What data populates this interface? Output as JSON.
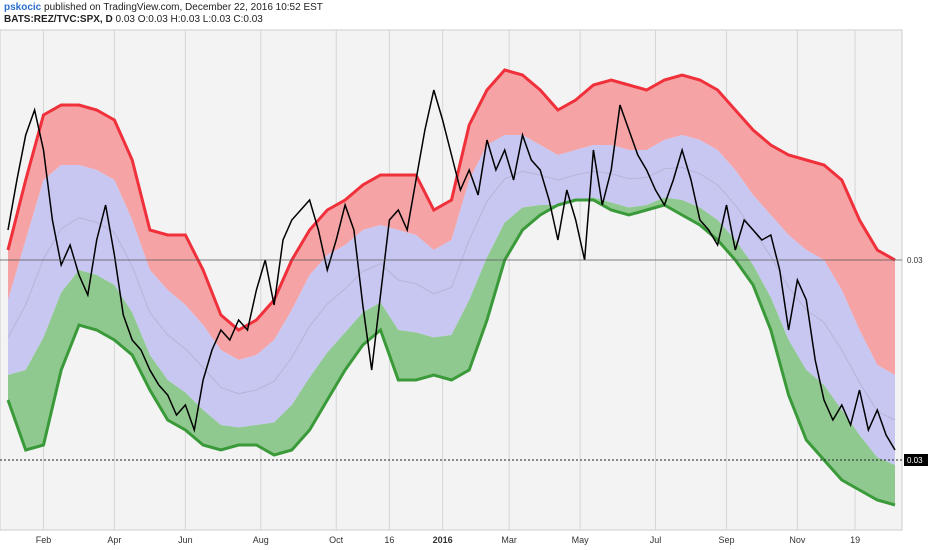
{
  "header": {
    "author": "pskocic",
    "published": "published on TradingView.com, December 22, 2016 10:52 EST",
    "symbol": "BATS:REZ/TVC:SPX, D",
    "ohlc": "0.03 O:0.03 H:0.03 L:0.03 C:0.03"
  },
  "chart_data": {
    "type": "line",
    "price_labels": [
      "0.03",
      "0.03"
    ],
    "xticks": [
      "Feb",
      "Apr",
      "Jun",
      "Aug",
      "Oct",
      "16",
      "2016",
      "Mar",
      "May",
      "Jul",
      "Sep",
      "Nov",
      "19"
    ],
    "xtick_positions": [
      0.04,
      0.12,
      0.2,
      0.285,
      0.37,
      0.43,
      0.49,
      0.565,
      0.645,
      0.73,
      0.81,
      0.89,
      0.955
    ],
    "bold_ticks": [
      "2016"
    ],
    "colors": {
      "upper_band": "#f0303a",
      "upper_fill": "#f5a3a5",
      "mid_fill": "#c7c7f2",
      "lower_band": "#3a9a3a",
      "lower_fill": "#8fc98f",
      "price": "#000000"
    },
    "series": [
      {
        "name": "upper",
        "x": [
          0,
          0.02,
          0.04,
          0.06,
          0.08,
          0.1,
          0.12,
          0.14,
          0.16,
          0.18,
          0.2,
          0.22,
          0.24,
          0.26,
          0.28,
          0.3,
          0.32,
          0.34,
          0.36,
          0.38,
          0.4,
          0.42,
          0.44,
          0.46,
          0.48,
          0.5,
          0.52,
          0.54,
          0.56,
          0.58,
          0.6,
          0.62,
          0.64,
          0.66,
          0.68,
          0.7,
          0.72,
          0.74,
          0.76,
          0.78,
          0.8,
          0.82,
          0.84,
          0.86,
          0.88,
          0.9,
          0.92,
          0.94,
          0.96,
          0.98,
          1.0
        ],
        "values": [
          0.46,
          0.6,
          0.73,
          0.75,
          0.75,
          0.74,
          0.72,
          0.64,
          0.5,
          0.49,
          0.49,
          0.42,
          0.33,
          0.3,
          0.32,
          0.36,
          0.44,
          0.5,
          0.54,
          0.56,
          0.59,
          0.61,
          0.61,
          0.61,
          0.54,
          0.56,
          0.71,
          0.78,
          0.82,
          0.81,
          0.78,
          0.74,
          0.76,
          0.79,
          0.8,
          0.79,
          0.78,
          0.8,
          0.81,
          0.8,
          0.78,
          0.74,
          0.7,
          0.67,
          0.65,
          0.64,
          0.63,
          0.6,
          0.52,
          0.46,
          0.44
        ]
      },
      {
        "name": "mid_upper",
        "x": [
          0,
          0.02,
          0.04,
          0.06,
          0.08,
          0.1,
          0.12,
          0.14,
          0.16,
          0.18,
          0.2,
          0.22,
          0.24,
          0.26,
          0.28,
          0.3,
          0.32,
          0.34,
          0.36,
          0.38,
          0.4,
          0.42,
          0.44,
          0.46,
          0.48,
          0.5,
          0.52,
          0.54,
          0.56,
          0.58,
          0.6,
          0.62,
          0.64,
          0.66,
          0.68,
          0.7,
          0.72,
          0.74,
          0.76,
          0.78,
          0.8,
          0.82,
          0.84,
          0.86,
          0.88,
          0.9,
          0.92,
          0.94,
          0.96,
          0.98,
          1.0
        ],
        "values": [
          0.36,
          0.48,
          0.6,
          0.63,
          0.63,
          0.62,
          0.6,
          0.52,
          0.42,
          0.38,
          0.35,
          0.31,
          0.26,
          0.24,
          0.25,
          0.28,
          0.34,
          0.41,
          0.45,
          0.47,
          0.5,
          0.51,
          0.5,
          0.49,
          0.46,
          0.48,
          0.6,
          0.67,
          0.69,
          0.69,
          0.67,
          0.65,
          0.66,
          0.67,
          0.67,
          0.66,
          0.66,
          0.68,
          0.69,
          0.68,
          0.66,
          0.62,
          0.57,
          0.53,
          0.49,
          0.46,
          0.44,
          0.38,
          0.3,
          0.23,
          0.21
        ]
      },
      {
        "name": "lower",
        "x": [
          0,
          0.02,
          0.04,
          0.06,
          0.08,
          0.1,
          0.12,
          0.14,
          0.16,
          0.18,
          0.2,
          0.22,
          0.24,
          0.26,
          0.28,
          0.3,
          0.32,
          0.34,
          0.36,
          0.38,
          0.4,
          0.42,
          0.44,
          0.46,
          0.48,
          0.5,
          0.52,
          0.54,
          0.56,
          0.58,
          0.6,
          0.62,
          0.64,
          0.66,
          0.68,
          0.7,
          0.72,
          0.74,
          0.76,
          0.78,
          0.8,
          0.82,
          0.84,
          0.86,
          0.88,
          0.9,
          0.92,
          0.94,
          0.96,
          0.98,
          1.0
        ],
        "values": [
          0.16,
          0.06,
          0.07,
          0.22,
          0.31,
          0.3,
          0.28,
          0.25,
          0.18,
          0.12,
          0.1,
          0.07,
          0.06,
          0.07,
          0.07,
          0.05,
          0.06,
          0.1,
          0.16,
          0.22,
          0.27,
          0.3,
          0.2,
          0.2,
          0.21,
          0.2,
          0.22,
          0.32,
          0.44,
          0.5,
          0.53,
          0.55,
          0.56,
          0.56,
          0.54,
          0.53,
          0.54,
          0.55,
          0.53,
          0.51,
          0.48,
          0.44,
          0.39,
          0.3,
          0.17,
          0.08,
          0.04,
          0.0,
          -0.02,
          -0.04,
          -0.05
        ]
      },
      {
        "name": "price",
        "x": [
          0,
          0.01,
          0.02,
          0.03,
          0.04,
          0.05,
          0.06,
          0.07,
          0.08,
          0.09,
          0.1,
          0.11,
          0.12,
          0.13,
          0.14,
          0.15,
          0.16,
          0.17,
          0.18,
          0.19,
          0.2,
          0.21,
          0.22,
          0.23,
          0.24,
          0.25,
          0.26,
          0.27,
          0.28,
          0.29,
          0.3,
          0.31,
          0.32,
          0.33,
          0.34,
          0.35,
          0.36,
          0.37,
          0.38,
          0.39,
          0.4,
          0.41,
          0.42,
          0.43,
          0.44,
          0.45,
          0.46,
          0.47,
          0.48,
          0.49,
          0.5,
          0.51,
          0.52,
          0.53,
          0.54,
          0.55,
          0.56,
          0.57,
          0.58,
          0.59,
          0.6,
          0.61,
          0.62,
          0.63,
          0.64,
          0.65,
          0.66,
          0.67,
          0.68,
          0.69,
          0.7,
          0.71,
          0.72,
          0.73,
          0.74,
          0.75,
          0.76,
          0.77,
          0.78,
          0.79,
          0.8,
          0.81,
          0.82,
          0.83,
          0.84,
          0.85,
          0.86,
          0.87,
          0.88,
          0.89,
          0.9,
          0.91,
          0.92,
          0.93,
          0.94,
          0.95,
          0.96,
          0.97,
          0.98,
          0.99,
          1.0
        ],
        "values": [
          0.5,
          0.6,
          0.69,
          0.74,
          0.66,
          0.52,
          0.43,
          0.47,
          0.41,
          0.37,
          0.48,
          0.55,
          0.45,
          0.33,
          0.28,
          0.26,
          0.22,
          0.19,
          0.17,
          0.13,
          0.15,
          0.1,
          0.2,
          0.26,
          0.3,
          0.28,
          0.32,
          0.3,
          0.38,
          0.44,
          0.35,
          0.48,
          0.52,
          0.54,
          0.56,
          0.5,
          0.42,
          0.48,
          0.55,
          0.5,
          0.35,
          0.22,
          0.37,
          0.52,
          0.54,
          0.5,
          0.6,
          0.7,
          0.78,
          0.72,
          0.65,
          0.58,
          0.62,
          0.57,
          0.68,
          0.62,
          0.66,
          0.6,
          0.69,
          0.64,
          0.62,
          0.56,
          0.48,
          0.58,
          0.52,
          0.44,
          0.66,
          0.55,
          0.62,
          0.75,
          0.7,
          0.65,
          0.62,
          0.58,
          0.55,
          0.6,
          0.66,
          0.6,
          0.52,
          0.5,
          0.47,
          0.55,
          0.46,
          0.52,
          0.5,
          0.48,
          0.49,
          0.42,
          0.3,
          0.4,
          0.36,
          0.24,
          0.16,
          0.12,
          0.15,
          0.11,
          0.18,
          0.1,
          0.14,
          0.09,
          0.06
        ]
      }
    ],
    "ylim": [
      -0.1,
      0.9
    ]
  }
}
